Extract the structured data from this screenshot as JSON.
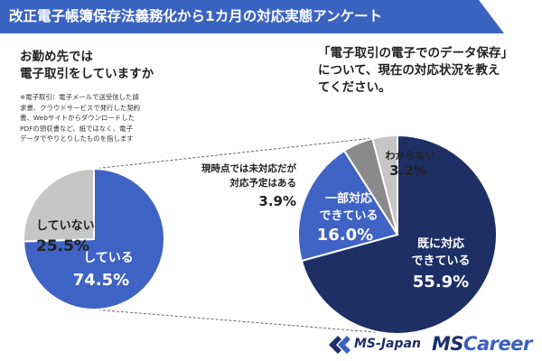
{
  "header": {
    "title": "改正電子帳簿保存法義務化から1カ月の対応実態アンケート"
  },
  "question_left": {
    "line1": "お勤め先では",
    "line2": "電子取引をしていますか",
    "note": [
      "※電子取引：電子メールで送受信した請",
      "求書、クラウドサービスで発行した契約",
      "書、Webサイトからダウンロードした",
      "PDFの領収書など、紙ではなく、電子",
      "データでやりとりしたものを指します"
    ]
  },
  "question_right": {
    "line1": "「電子取引の電子でのデータ保存」",
    "line2": "について、現在の対応状況を教え",
    "line3": "てください。"
  },
  "colors": {
    "banner": "#3a63c0",
    "dark_navy": "#1e2f66",
    "blue": "#3f63c4",
    "light_gray": "#c6c6c6",
    "dark_gray": "#8a8a8a",
    "mid_gray": "#b3b3b3"
  },
  "chart_data": [
    {
      "type": "pie",
      "slices": [
        {
          "label": "している",
          "value": 74.5,
          "display": "74.5%",
          "color": "#3f63c4"
        },
        {
          "label": "していない",
          "value": 25.5,
          "display": "25.5%",
          "color": "#c6c6c6"
        }
      ]
    },
    {
      "type": "pie",
      "slices": [
        {
          "label_lines": [
            "既に対応",
            "できている"
          ],
          "value": 55.9,
          "display": "55.9%",
          "color": "#1e2f66"
        },
        {
          "label_lines": [
            "一部対応",
            "できている"
          ],
          "value": 16.0,
          "display": "16.0%",
          "color": "#3f63c4"
        },
        {
          "label_lines": [
            "現時点では未対応だが",
            "対応予定はある"
          ],
          "value": 3.9,
          "display": "3.9%",
          "color": "#8a8a8a"
        },
        {
          "label_lines": [
            "わからない"
          ],
          "value": 3.2,
          "display": "3.2%",
          "color": "#c6c6c6"
        }
      ]
    }
  ],
  "logos": {
    "ms_japan": "MS-Japan",
    "ms": "MS",
    "career": "Career"
  }
}
